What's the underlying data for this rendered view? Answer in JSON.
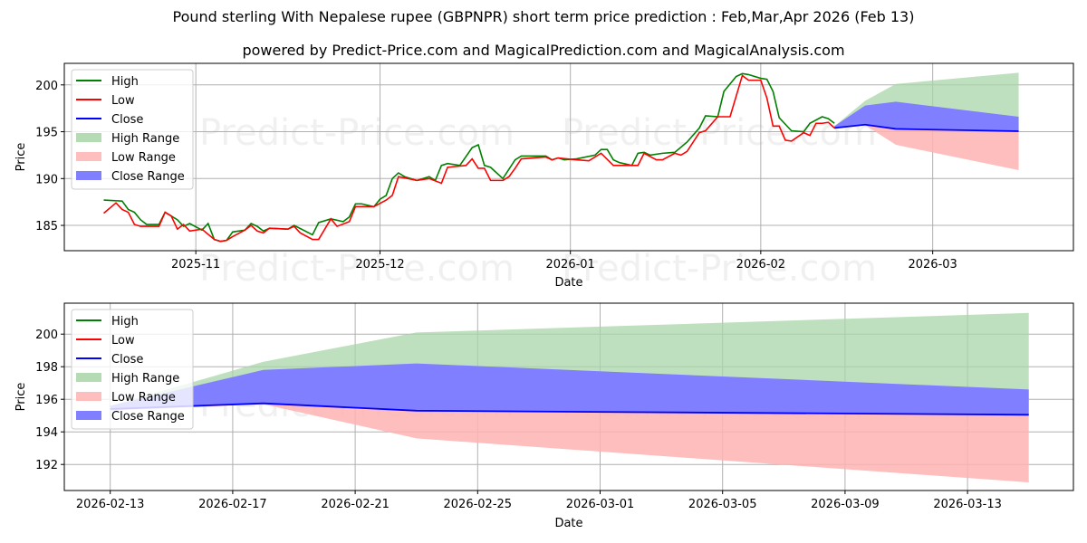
{
  "title": "Pound sterling With Nepalese rupee (GBPNPR) short term price prediction : Feb,Mar,Apr 2026 (Feb 13)",
  "subtitle": "powered by Predict-Price.com and MagicalPrediction.com and MagicalAnalysis.com",
  "watermark": "Predict-Price.com",
  "colors": {
    "high": "#008000",
    "low": "#ff0000",
    "close": "#0000ff",
    "high_range": "#a8d5a8",
    "low_range": "#ffb3b3",
    "close_range": "#7f7fff"
  },
  "legend": [
    "High",
    "Low",
    "Close",
    "High Range",
    "Low Range",
    "Close Range"
  ],
  "chart_data": [
    {
      "type": "line",
      "xlabel": "Date",
      "ylabel": "Price",
      "xlim": [
        "2025-10-10T14:00",
        "2026-03-23T22:00"
      ],
      "ylim": [
        182.3,
        202.3
      ],
      "yticks": [
        185,
        190,
        195,
        200
      ],
      "xticks": [
        [
          "2025-11-01",
          "2025-11"
        ],
        [
          "2025-12-01",
          "2025-12"
        ],
        [
          "2026-01-01",
          "2026-01"
        ],
        [
          "2026-02-01",
          "2026-02"
        ],
        [
          "2026-03-01",
          "2026-03"
        ]
      ],
      "grid": true,
      "legend_position": "top-left",
      "series": [
        {
          "name": "High",
          "points": [
            [
              "2025-10-17",
              187.7
            ],
            [
              "2025-10-20",
              187.6
            ],
            [
              "2025-10-21",
              186.7
            ],
            [
              "2025-10-22",
              186.4
            ],
            [
              "2025-10-23",
              185.6
            ],
            [
              "2025-10-24",
              185.1
            ],
            [
              "2025-10-26",
              185.1
            ],
            [
              "2025-10-27",
              186.4
            ],
            [
              "2025-10-29",
              185.6
            ],
            [
              "2025-10-30",
              184.9
            ],
            [
              "2025-10-31",
              185.2
            ],
            [
              "2025-11-02",
              184.5
            ],
            [
              "2025-11-03",
              185.2
            ],
            [
              "2025-11-04",
              183.5
            ],
            [
              "2025-11-05",
              183.3
            ],
            [
              "2025-11-06",
              183.4
            ],
            [
              "2025-11-07",
              184.3
            ],
            [
              "2025-11-09",
              184.5
            ],
            [
              "2025-11-10",
              185.2
            ],
            [
              "2025-11-11",
              184.9
            ],
            [
              "2025-11-12",
              184.4
            ],
            [
              "2025-11-13",
              184.7
            ],
            [
              "2025-11-16",
              184.6
            ],
            [
              "2025-11-17",
              185.0
            ],
            [
              "2025-11-20",
              184.0
            ],
            [
              "2025-11-21",
              185.3
            ],
            [
              "2025-11-23",
              185.7
            ],
            [
              "2025-11-25",
              185.4
            ],
            [
              "2025-11-26",
              185.9
            ],
            [
              "2025-11-27",
              187.3
            ],
            [
              "2025-11-28",
              187.3
            ],
            [
              "2025-11-30",
              187.0
            ],
            [
              "2025-12-01",
              187.8
            ],
            [
              "2025-12-02",
              188.2
            ],
            [
              "2025-12-03",
              190.0
            ],
            [
              "2025-12-04",
              190.6
            ],
            [
              "2025-12-05",
              190.2
            ],
            [
              "2025-12-07",
              189.8
            ],
            [
              "2025-12-09",
              190.2
            ],
            [
              "2025-12-10",
              189.8
            ],
            [
              "2025-12-11",
              191.4
            ],
            [
              "2025-12-12",
              191.6
            ],
            [
              "2025-12-14",
              191.4
            ],
            [
              "2025-12-16",
              193.3
            ],
            [
              "2025-12-17",
              193.6
            ],
            [
              "2025-12-18",
              191.4
            ],
            [
              "2025-12-19",
              191.2
            ],
            [
              "2025-12-21",
              190.0
            ],
            [
              "2025-12-23",
              192.0
            ],
            [
              "2025-12-24",
              192.4
            ],
            [
              "2025-12-28",
              192.4
            ],
            [
              "2025-12-29",
              192.0
            ],
            [
              "2025-12-30",
              192.2
            ],
            [
              "2025-12-31",
              192.0
            ],
            [
              "2026-01-02",
              192.1
            ],
            [
              "2026-01-05",
              192.5
            ],
            [
              "2026-01-06",
              193.1
            ],
            [
              "2026-01-07",
              193.1
            ],
            [
              "2026-01-08",
              192.0
            ],
            [
              "2026-01-09",
              191.7
            ],
            [
              "2026-01-11",
              191.4
            ],
            [
              "2026-01-12",
              192.7
            ],
            [
              "2026-01-13",
              192.8
            ],
            [
              "2026-01-14",
              192.5
            ],
            [
              "2026-01-16",
              192.7
            ],
            [
              "2026-01-18",
              192.8
            ],
            [
              "2026-01-20",
              193.9
            ],
            [
              "2026-01-22",
              195.4
            ],
            [
              "2026-01-23",
              196.7
            ],
            [
              "2026-01-25",
              196.6
            ],
            [
              "2026-01-26",
              199.3
            ],
            [
              "2026-01-28",
              200.9
            ],
            [
              "2026-01-29",
              201.2
            ],
            [
              "2026-01-30",
              201.1
            ],
            [
              "2026-02-01",
              200.7
            ],
            [
              "2026-02-02",
              200.6
            ],
            [
              "2026-02-03",
              199.3
            ],
            [
              "2026-02-04",
              196.5
            ],
            [
              "2026-02-06",
              195.1
            ],
            [
              "2026-02-08",
              195.0
            ],
            [
              "2026-02-09",
              195.9
            ],
            [
              "2026-02-11",
              196.6
            ],
            [
              "2026-02-12",
              196.4
            ],
            [
              "2026-02-13",
              195.9
            ]
          ]
        },
        {
          "name": "Low",
          "points": [
            [
              "2025-10-17",
              186.3
            ],
            [
              "2025-10-19",
              187.4
            ],
            [
              "2025-10-20",
              186.7
            ],
            [
              "2025-10-21",
              186.4
            ],
            [
              "2025-10-22",
              185.1
            ],
            [
              "2025-10-23",
              184.9
            ],
            [
              "2025-10-26",
              184.9
            ],
            [
              "2025-10-27",
              186.4
            ],
            [
              "2025-10-28",
              186.0
            ],
            [
              "2025-10-29",
              184.6
            ],
            [
              "2025-10-30",
              185.1
            ],
            [
              "2025-10-31",
              184.4
            ],
            [
              "2025-11-02",
              184.6
            ],
            [
              "2025-11-04",
              183.5
            ],
            [
              "2025-11-05",
              183.3
            ],
            [
              "2025-11-06",
              183.4
            ],
            [
              "2025-11-07",
              183.8
            ],
            [
              "2025-11-09",
              184.5
            ],
            [
              "2025-11-10",
              185.0
            ],
            [
              "2025-11-11",
              184.4
            ],
            [
              "2025-11-12",
              184.2
            ],
            [
              "2025-11-13",
              184.7
            ],
            [
              "2025-11-16",
              184.6
            ],
            [
              "2025-11-17",
              184.9
            ],
            [
              "2025-11-18",
              184.2
            ],
            [
              "2025-11-20",
              183.5
            ],
            [
              "2025-11-21",
              183.5
            ],
            [
              "2025-11-23",
              185.7
            ],
            [
              "2025-11-24",
              184.9
            ],
            [
              "2025-11-26",
              185.4
            ],
            [
              "2025-11-27",
              187.0
            ],
            [
              "2025-11-30",
              187.0
            ],
            [
              "2025-12-02",
              187.7
            ],
            [
              "2025-12-03",
              188.2
            ],
            [
              "2025-12-04",
              190.2
            ],
            [
              "2025-12-07",
              189.8
            ],
            [
              "2025-12-09",
              190.0
            ],
            [
              "2025-12-11",
              189.5
            ],
            [
              "2025-12-12",
              191.2
            ],
            [
              "2025-12-15",
              191.4
            ],
            [
              "2025-12-16",
              192.1
            ],
            [
              "2025-12-17",
              191.1
            ],
            [
              "2025-12-18",
              191.1
            ],
            [
              "2025-12-19",
              189.8
            ],
            [
              "2025-12-21",
              189.8
            ],
            [
              "2025-12-22",
              190.2
            ],
            [
              "2025-12-23",
              191.1
            ],
            [
              "2025-12-24",
              192.1
            ],
            [
              "2025-12-28",
              192.3
            ],
            [
              "2025-12-29",
              192.0
            ],
            [
              "2025-12-30",
              192.2
            ],
            [
              "2026-01-02",
              192.0
            ],
            [
              "2026-01-04",
              191.9
            ],
            [
              "2026-01-06",
              192.7
            ],
            [
              "2026-01-08",
              191.4
            ],
            [
              "2026-01-12",
              191.4
            ],
            [
              "2026-01-13",
              192.7
            ],
            [
              "2026-01-15",
              192.0
            ],
            [
              "2026-01-16",
              192.0
            ],
            [
              "2026-01-18",
              192.7
            ],
            [
              "2026-01-19",
              192.5
            ],
            [
              "2026-01-20",
              192.9
            ],
            [
              "2026-01-22",
              194.9
            ],
            [
              "2026-01-23",
              195.1
            ],
            [
              "2026-01-25",
              196.6
            ],
            [
              "2026-01-27",
              196.6
            ],
            [
              "2026-01-29",
              201.0
            ],
            [
              "2026-01-30",
              200.5
            ],
            [
              "2026-02-01",
              200.5
            ],
            [
              "2026-02-02",
              198.6
            ],
            [
              "2026-02-03",
              195.6
            ],
            [
              "2026-02-04",
              195.6
            ],
            [
              "2026-02-05",
              194.1
            ],
            [
              "2026-02-06",
              194.0
            ],
            [
              "2026-02-08",
              194.9
            ],
            [
              "2026-02-09",
              194.6
            ],
            [
              "2026-02-10",
              195.9
            ],
            [
              "2026-02-11",
              195.9
            ],
            [
              "2026-02-12",
              196.0
            ],
            [
              "2026-02-13",
              195.4
            ]
          ]
        }
      ],
      "forecast": {
        "dates": [
          "2026-02-13",
          "2026-02-18",
          "2026-02-23",
          "2026-03-15"
        ],
        "close": [
          195.4,
          195.75,
          195.3,
          195.05
        ],
        "high_range_upper": [
          195.6,
          198.3,
          200.1,
          201.3
        ],
        "close_range_upper": [
          195.6,
          197.8,
          198.2,
          196.6
        ],
        "low_range_lower": [
          195.3,
          195.7,
          193.6,
          190.9
        ]
      }
    },
    {
      "type": "line",
      "xlabel": "Date",
      "ylabel": "Price",
      "xlim": [
        "2026-02-11T12:00",
        "2026-03-16T11:00"
      ],
      "ylim": [
        190.4,
        201.9
      ],
      "yticks": [
        192,
        194,
        196,
        198,
        200
      ],
      "xticks": [
        [
          "2026-02-13",
          "2026-02-13"
        ],
        [
          "2026-02-17",
          "2026-02-17"
        ],
        [
          "2026-02-21",
          "2026-02-21"
        ],
        [
          "2026-02-25",
          "2026-02-25"
        ],
        [
          "2026-03-01",
          "2026-03-01"
        ],
        [
          "2026-03-05",
          "2026-03-05"
        ],
        [
          "2026-03-09",
          "2026-03-09"
        ],
        [
          "2026-03-13",
          "2026-03-13"
        ]
      ],
      "grid": true,
      "legend_position": "top-left",
      "use_forecast_of_first": true
    }
  ]
}
